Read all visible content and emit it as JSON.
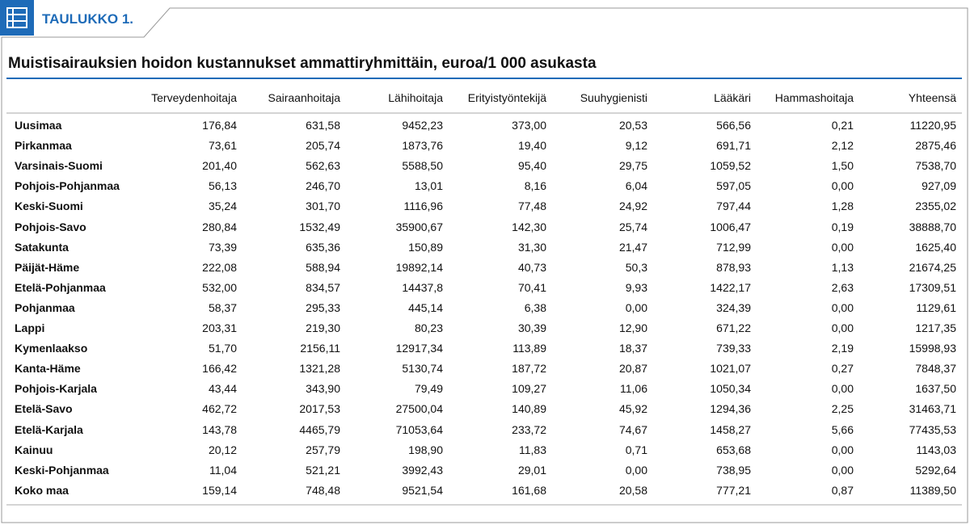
{
  "header": {
    "label": "TAULUKKO 1."
  },
  "title": "Muistisairauksien hoidon kustannukset ammattiryhmittäin, euroa/1 000 asukasta",
  "table": {
    "columns": [
      "Terveydenhoitaja",
      "Sairaanhoitaja",
      "Lähihoitaja",
      "Erityistyöntekijä",
      "Suuhygienisti",
      "Lääkäri",
      "Hammashoitaja",
      "Yhteensä"
    ],
    "rows": [
      {
        "label": "Uusimaa",
        "values": [
          "176,84",
          "631,58",
          "9452,23",
          "373,00",
          "20,53",
          "566,56",
          "0,21",
          "11220,95"
        ]
      },
      {
        "label": "Pirkanmaa",
        "values": [
          "73,61",
          "205,74",
          "1873,76",
          "19,40",
          "9,12",
          "691,71",
          "2,12",
          "2875,46"
        ]
      },
      {
        "label": "Varsinais-Suomi",
        "values": [
          "201,40",
          "562,63",
          "5588,50",
          "95,40",
          "29,75",
          "1059,52",
          "1,50",
          "7538,70"
        ]
      },
      {
        "label": "Pohjois-Pohjanmaa",
        "values": [
          "56,13",
          "246,70",
          "13,01",
          "8,16",
          "6,04",
          "597,05",
          "0,00",
          "927,09"
        ]
      },
      {
        "label": "Keski-Suomi",
        "values": [
          "35,24",
          "301,70",
          "1116,96",
          "77,48",
          "24,92",
          "797,44",
          "1,28",
          "2355,02"
        ]
      },
      {
        "label": "Pohjois-Savo",
        "values": [
          "280,84",
          "1532,49",
          "35900,67",
          "142,30",
          "25,74",
          "1006,47",
          "0,19",
          "38888,70"
        ]
      },
      {
        "label": "Satakunta",
        "values": [
          "73,39",
          "635,36",
          "150,89",
          "31,30",
          "21,47",
          "712,99",
          "0,00",
          "1625,40"
        ]
      },
      {
        "label": "Päijät-Häme",
        "values": [
          "222,08",
          "588,94",
          "19892,14",
          "40,73",
          "50,3",
          "878,93",
          "1,13",
          "21674,25"
        ]
      },
      {
        "label": "Etelä-Pohjanmaa",
        "values": [
          "532,00",
          "834,57",
          "14437,8",
          "70,41",
          "9,93",
          "1422,17",
          "2,63",
          "17309,51"
        ]
      },
      {
        "label": "Pohjanmaa",
        "values": [
          "58,37",
          "295,33",
          "445,14",
          "6,38",
          "0,00",
          "324,39",
          "0,00",
          "1129,61"
        ]
      },
      {
        "label": "Lappi",
        "values": [
          "203,31",
          "219,30",
          "80,23",
          "30,39",
          "12,90",
          "671,22",
          "0,00",
          "1217,35"
        ]
      },
      {
        "label": "Kymenlaakso",
        "values": [
          "51,70",
          "2156,11",
          "12917,34",
          "113,89",
          "18,37",
          "739,33",
          "2,19",
          "15998,93"
        ]
      },
      {
        "label": "Kanta-Häme",
        "values": [
          "166,42",
          "1321,28",
          "5130,74",
          "187,72",
          "20,87",
          "1021,07",
          "0,27",
          "7848,37"
        ]
      },
      {
        "label": "Pohjois-Karjala",
        "values": [
          "43,44",
          "343,90",
          "79,49",
          "109,27",
          "11,06",
          "1050,34",
          "0,00",
          "1637,50"
        ]
      },
      {
        "label": "Etelä-Savo",
        "values": [
          "462,72",
          "2017,53",
          "27500,04",
          "140,89",
          "45,92",
          "1294,36",
          "2,25",
          "31463,71"
        ]
      },
      {
        "label": "Etelä-Karjala",
        "values": [
          "143,78",
          "4465,79",
          "71053,64",
          "233,72",
          "74,67",
          "1458,27",
          "5,66",
          "77435,53"
        ]
      },
      {
        "label": "Kainuu",
        "values": [
          "20,12",
          "257,79",
          "198,90",
          "11,83",
          "0,71",
          "653,68",
          "0,00",
          "1143,03"
        ]
      },
      {
        "label": "Keski-Pohjanmaa",
        "values": [
          "11,04",
          "521,21",
          "3992,43",
          "29,01",
          "0,00",
          "738,95",
          "0,00",
          "5292,64"
        ]
      },
      {
        "label": "Koko maa",
        "values": [
          "159,14",
          "748,48",
          "9521,54",
          "161,68",
          "20,58",
          "777,21",
          "0,87",
          "11389,50"
        ]
      }
    ]
  }
}
